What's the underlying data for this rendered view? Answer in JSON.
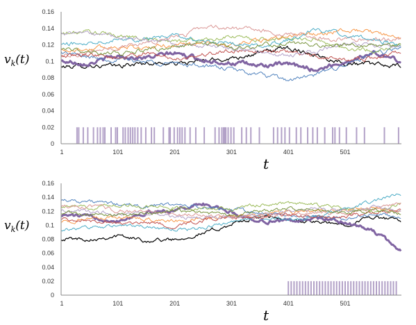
{
  "chart_data": [
    {
      "type": "line",
      "ylabel": "v_k(t)",
      "xlabel": "t",
      "ylim": [
        0,
        0.16
      ],
      "xlim": [
        1,
        600
      ],
      "yticks": [
        "0",
        "0.02",
        "0.04",
        "0.06",
        "0.08",
        "0.1",
        "0.12",
        "0.14",
        "0.16"
      ],
      "xticks": [
        "1",
        "101",
        "201",
        "301",
        "401",
        "501"
      ],
      "grid": false,
      "legend": "none",
      "series": [
        {
          "color": "#000000",
          "width": 1.2,
          "x": [
            1,
            50,
            100,
            150,
            200,
            250,
            300,
            350,
            400,
            450,
            500,
            550,
            600
          ],
          "y": [
            0.093,
            0.095,
            0.094,
            0.098,
            0.097,
            0.1,
            0.104,
            0.11,
            0.117,
            0.108,
            0.098,
            0.096,
            0.094
          ]
        },
        {
          "color": "#8064a2",
          "width": 3.0,
          "x": [
            1,
            50,
            100,
            150,
            200,
            250,
            300,
            350,
            400,
            450,
            500,
            550,
            600
          ],
          "y": [
            0.1,
            0.098,
            0.106,
            0.104,
            0.11,
            0.102,
            0.098,
            0.095,
            0.096,
            0.09,
            0.099,
            0.11,
            0.1
          ]
        },
        {
          "color": "#4f81bd",
          "width": 1.0,
          "x": [
            1,
            50,
            100,
            150,
            200,
            250,
            300,
            350,
            400,
            450,
            500,
            550,
            600
          ],
          "y": [
            0.111,
            0.105,
            0.102,
            0.1,
            0.097,
            0.095,
            0.09,
            0.084,
            0.077,
            0.083,
            0.096,
            0.108,
            0.116
          ]
        },
        {
          "color": "#9bbb59",
          "width": 1.0,
          "x": [
            1,
            50,
            100,
            150,
            200,
            250,
            300,
            350,
            400,
            450,
            500,
            550,
            600
          ],
          "y": [
            0.133,
            0.136,
            0.131,
            0.128,
            0.124,
            0.126,
            0.13,
            0.126,
            0.129,
            0.126,
            0.116,
            0.113,
            0.12
          ]
        },
        {
          "color": "#f79646",
          "width": 1.0,
          "x": [
            1,
            50,
            100,
            150,
            200,
            250,
            300,
            350,
            400,
            450,
            500,
            550,
            600
          ],
          "y": [
            0.113,
            0.115,
            0.118,
            0.116,
            0.12,
            0.122,
            0.119,
            0.125,
            0.13,
            0.133,
            0.137,
            0.136,
            0.125
          ]
        },
        {
          "color": "#da9694",
          "width": 1.0,
          "x": [
            1,
            50,
            100,
            150,
            200,
            250,
            300,
            350,
            400,
            450,
            500,
            550,
            600
          ],
          "y": [
            0.106,
            0.112,
            0.117,
            0.123,
            0.128,
            0.142,
            0.141,
            0.137,
            0.133,
            0.128,
            0.127,
            0.126,
            0.127
          ]
        },
        {
          "color": "#4bacc6",
          "width": 1.0,
          "x": [
            1,
            50,
            100,
            150,
            200,
            250,
            300,
            350,
            400,
            450,
            500,
            550,
            600
          ],
          "y": [
            0.12,
            0.123,
            0.128,
            0.127,
            0.131,
            0.124,
            0.121,
            0.119,
            0.126,
            0.139,
            0.132,
            0.128,
            0.118
          ]
        },
        {
          "color": "#c0504d",
          "width": 1.0,
          "x": [
            1,
            50,
            100,
            150,
            200,
            250,
            300,
            350,
            400,
            450,
            500,
            550,
            600
          ],
          "y": [
            0.105,
            0.109,
            0.104,
            0.11,
            0.103,
            0.108,
            0.113,
            0.114,
            0.111,
            0.106,
            0.102,
            0.103,
            0.112
          ]
        },
        {
          "color": "#b2a1c7",
          "width": 1.0,
          "x": [
            1,
            50,
            100,
            150,
            200,
            250,
            300,
            350,
            400,
            450,
            500,
            550,
            600
          ],
          "y": [
            0.134,
            0.133,
            0.129,
            0.126,
            0.121,
            0.118,
            0.116,
            0.111,
            0.106,
            0.112,
            0.121,
            0.12,
            0.118
          ]
        },
        {
          "color": "#77933c",
          "width": 1.0,
          "x": [
            1,
            50,
            100,
            150,
            200,
            250,
            300,
            350,
            400,
            450,
            500,
            550,
            600
          ],
          "y": [
            0.114,
            0.111,
            0.109,
            0.114,
            0.118,
            0.121,
            0.116,
            0.119,
            0.123,
            0.118,
            0.12,
            0.118,
            0.119
          ]
        }
      ],
      "events": {
        "color": "#b2a1c7",
        "height": 0.02,
        "x": [
          29,
          32,
          40,
          48,
          58,
          65,
          70,
          75,
          78,
          89,
          97,
          100,
          110,
          114,
          119,
          123,
          127,
          131,
          136,
          142,
          150,
          160,
          165,
          181,
          191,
          193,
          200,
          206,
          210,
          214,
          219,
          228,
          238,
          253,
          272,
          279,
          284,
          287,
          289,
          291,
          295,
          300,
          305,
          319,
          327,
          335,
          350,
          375,
          382,
          389,
          395,
          403,
          415,
          423,
          435,
          444,
          452,
          465,
          479,
          483,
          491,
          503,
          521,
          535,
          570,
          595
        ]
      }
    },
    {
      "type": "line",
      "ylabel": "v_k(t)",
      "xlabel": "t",
      "ylim": [
        0,
        0.16
      ],
      "xlim": [
        1,
        600
      ],
      "yticks": [
        "0",
        "0.02",
        "0.04",
        "0.06",
        "0.08",
        "0.1",
        "0.12",
        "0.14",
        "0.16"
      ],
      "xticks": [
        "1",
        "101",
        "201",
        "301",
        "401",
        "501"
      ],
      "grid": false,
      "legend": "none",
      "series": [
        {
          "color": "#000000",
          "width": 1.2,
          "x": [
            1,
            50,
            100,
            150,
            200,
            250,
            300,
            350,
            400,
            450,
            500,
            550,
            600
          ],
          "y": [
            0.081,
            0.08,
            0.085,
            0.078,
            0.08,
            0.088,
            0.101,
            0.112,
            0.108,
            0.104,
            0.101,
            0.112,
            0.106
          ]
        },
        {
          "color": "#8064a2",
          "width": 3.0,
          "x": [
            1,
            50,
            100,
            150,
            200,
            250,
            300,
            350,
            400,
            450,
            500,
            550,
            600
          ],
          "y": [
            0.115,
            0.112,
            0.107,
            0.118,
            0.122,
            0.131,
            0.118,
            0.106,
            0.106,
            0.11,
            0.105,
            0.092,
            0.063
          ]
        },
        {
          "color": "#4f81bd",
          "width": 1.0,
          "x": [
            1,
            50,
            100,
            150,
            200,
            250,
            300,
            350,
            400,
            450,
            500,
            550,
            600
          ],
          "y": [
            0.137,
            0.134,
            0.13,
            0.127,
            0.13,
            0.125,
            0.123,
            0.117,
            0.114,
            0.112,
            0.109,
            0.116,
            0.111
          ]
        },
        {
          "color": "#9bbb59",
          "width": 1.0,
          "x": [
            1,
            50,
            100,
            150,
            200,
            250,
            300,
            350,
            400,
            450,
            500,
            550,
            600
          ],
          "y": [
            0.128,
            0.125,
            0.13,
            0.127,
            0.126,
            0.124,
            0.123,
            0.129,
            0.132,
            0.129,
            0.124,
            0.118,
            0.131
          ]
        },
        {
          "color": "#f79646",
          "width": 1.0,
          "x": [
            1,
            50,
            100,
            150,
            200,
            250,
            300,
            350,
            400,
            450,
            500,
            550,
            600
          ],
          "y": [
            0.106,
            0.108,
            0.112,
            0.109,
            0.106,
            0.11,
            0.113,
            0.116,
            0.118,
            0.121,
            0.122,
            0.126,
            0.118
          ]
        },
        {
          "color": "#da9694",
          "width": 1.0,
          "x": [
            1,
            50,
            100,
            150,
            200,
            250,
            300,
            350,
            400,
            450,
            500,
            550,
            600
          ],
          "y": [
            0.128,
            0.127,
            0.121,
            0.119,
            0.117,
            0.114,
            0.111,
            0.113,
            0.116,
            0.119,
            0.118,
            0.123,
            0.133
          ]
        },
        {
          "color": "#4bacc6",
          "width": 1.0,
          "x": [
            1,
            50,
            100,
            150,
            200,
            250,
            300,
            350,
            400,
            450,
            500,
            550,
            600
          ],
          "y": [
            0.094,
            0.096,
            0.1,
            0.097,
            0.093,
            0.096,
            0.105,
            0.111,
            0.108,
            0.111,
            0.124,
            0.134,
            0.145
          ]
        },
        {
          "color": "#c0504d",
          "width": 1.0,
          "x": [
            1,
            50,
            100,
            150,
            200,
            250,
            300,
            350,
            400,
            450,
            500,
            550,
            600
          ],
          "y": [
            0.11,
            0.106,
            0.103,
            0.104,
            0.099,
            0.107,
            0.112,
            0.11,
            0.115,
            0.113,
            0.112,
            0.118,
            0.124
          ]
        },
        {
          "color": "#b2a1c7",
          "width": 1.0,
          "x": [
            1,
            50,
            100,
            150,
            200,
            250,
            300,
            350,
            400,
            450,
            500,
            550,
            600
          ],
          "y": [
            0.122,
            0.12,
            0.117,
            0.116,
            0.113,
            0.11,
            0.11,
            0.114,
            0.12,
            0.124,
            0.12,
            0.126,
            0.119
          ]
        },
        {
          "color": "#77933c",
          "width": 1.0,
          "x": [
            1,
            50,
            100,
            150,
            200,
            250,
            300,
            350,
            400,
            450,
            500,
            550,
            600
          ],
          "y": [
            0.118,
            0.116,
            0.113,
            0.117,
            0.121,
            0.117,
            0.115,
            0.119,
            0.124,
            0.121,
            0.117,
            0.122,
            0.116
          ]
        }
      ],
      "events": {
        "color": "#b2a1c7",
        "height": 0.02,
        "x": [
          401,
          406,
          411,
          416,
          421,
          426,
          431,
          436,
          441,
          446,
          451,
          456,
          461,
          466,
          471,
          476,
          481,
          486,
          491,
          496,
          501,
          506,
          511,
          516,
          521,
          526,
          531,
          536,
          541,
          546,
          551,
          556,
          561,
          566,
          571,
          576,
          581,
          586,
          591
        ]
      }
    }
  ]
}
